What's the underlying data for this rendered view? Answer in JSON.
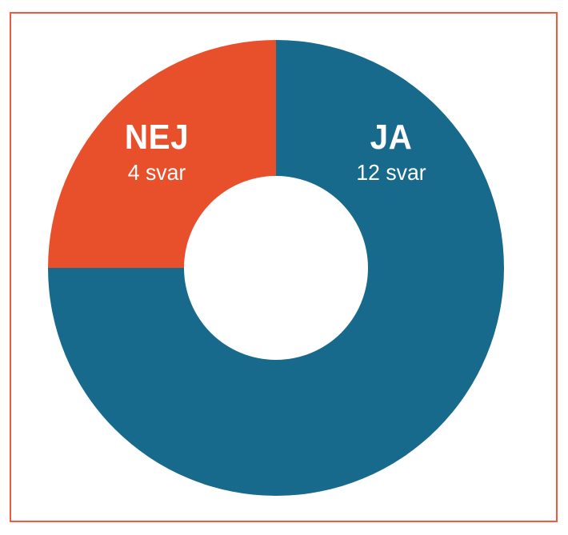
{
  "page": {
    "background_color": "#FFFFFF",
    "frame_border_color": "#EF5B3C"
  },
  "chart_data": {
    "type": "pie",
    "subtype": "donut",
    "unit": "svar",
    "total": 16,
    "start_angle_deg": 0,
    "direction": "clockwise",
    "inner_radius_ratio": 0.403,
    "label_color": "#FFFFFF",
    "legend": "none",
    "grid": false,
    "segments": [
      {
        "label": "JA",
        "value": 12,
        "sublabel": "12 svar",
        "color": "#186A8C"
      },
      {
        "label": "NEJ",
        "value": 4,
        "sublabel": "4 svar",
        "color": "#E8502C"
      }
    ]
  }
}
